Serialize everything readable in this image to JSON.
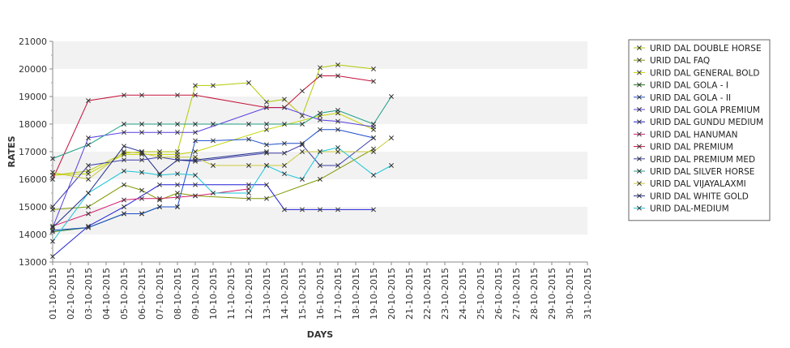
{
  "chart_data": {
    "type": "line",
    "title": "",
    "xlabel": "DAYS",
    "ylabel": "RATES",
    "ylim": [
      13000,
      21000
    ],
    "yticks": [
      13000,
      14000,
      15000,
      16000,
      17000,
      18000,
      19000,
      20000,
      21000
    ],
    "grid": "alternating horizontal bands",
    "legend_position": "right",
    "categories": [
      "01-10-2015",
      "02-10-2015",
      "03-10-2015",
      "04-10-2015",
      "05-10-2015",
      "06-10-2015",
      "07-10-2015",
      "08-10-2015",
      "09-10-2015",
      "10-10-2015",
      "11-10-2015",
      "12-10-2015",
      "13-10-2015",
      "14-10-2015",
      "15-10-2015",
      "16-10-2015",
      "17-10-2015",
      "18-10-2015",
      "19-10-2015",
      "20-10-2015",
      "21-10-2015",
      "22-10-2015",
      "23-10-2015",
      "24-10-2015",
      "25-10-2015",
      "26-10-2015",
      "27-10-2015",
      "28-10-2015",
      "29-10-2015",
      "30-10-2015",
      "31-10-2015"
    ],
    "series": [
      {
        "name": "URID DAL DOUBLE HORSE",
        "color": "#b5c900",
        "points": [
          [
            "01-10-2015",
            16150
          ],
          [
            "03-10-2015",
            16300
          ],
          [
            "05-10-2015",
            16950
          ],
          [
            "06-10-2015",
            17000
          ],
          [
            "07-10-2015",
            17000
          ],
          [
            "08-10-2015",
            17000
          ],
          [
            "09-10-2015",
            19400
          ],
          [
            "10-10-2015",
            19400
          ],
          [
            "12-10-2015",
            19500
          ],
          [
            "13-10-2015",
            18800
          ],
          [
            "14-10-2015",
            18900
          ],
          [
            "15-10-2015",
            18300
          ],
          [
            "16-10-2015",
            20050
          ],
          [
            "17-10-2015",
            20150
          ],
          [
            "19-10-2015",
            20000
          ]
        ]
      },
      {
        "name": "URID DAL FAQ",
        "color": "#7f9900",
        "points": [
          [
            "01-10-2015",
            14900
          ],
          [
            "03-10-2015",
            15000
          ],
          [
            "05-10-2015",
            15800
          ],
          [
            "06-10-2015",
            15600
          ],
          [
            "07-10-2015",
            15250
          ],
          [
            "08-10-2015",
            15500
          ],
          [
            "09-10-2015",
            15400
          ],
          [
            "12-10-2015",
            15300
          ],
          [
            "13-10-2015",
            15300
          ],
          [
            "16-10-2015",
            16000
          ],
          [
            "19-10-2015",
            17100
          ]
        ]
      },
      {
        "name": "URID DAL GENERAL BOLD",
        "color": "#c3d600",
        "points": [
          [
            "01-10-2015",
            16150
          ],
          [
            "03-10-2015",
            16200
          ],
          [
            "05-10-2015",
            16900
          ],
          [
            "06-10-2015",
            16900
          ],
          [
            "07-10-2015",
            16900
          ],
          [
            "08-10-2015",
            16900
          ],
          [
            "09-10-2015",
            17000
          ],
          [
            "13-10-2015",
            17800
          ],
          [
            "16-10-2015",
            18300
          ],
          [
            "17-10-2015",
            18400
          ],
          [
            "19-10-2015",
            17800
          ]
        ]
      },
      {
        "name": "URID DAL GOLA - I",
        "color": "#1e7a1e",
        "points": [
          [
            "01-10-2015",
            14100
          ],
          [
            "03-10-2015",
            14250
          ],
          [
            "05-10-2015",
            14750
          ],
          [
            "06-10-2015",
            14750
          ],
          [
            "07-10-2015",
            15000
          ],
          [
            "08-10-2015",
            15000
          ]
        ]
      },
      {
        "name": "URID DAL GOLA - II",
        "color": "#1a4dcc",
        "points": [
          [
            "01-10-2015",
            14150
          ],
          [
            "03-10-2015",
            14250
          ],
          [
            "05-10-2015",
            14750
          ],
          [
            "06-10-2015",
            14750
          ],
          [
            "07-10-2015",
            15000
          ],
          [
            "08-10-2015",
            15000
          ],
          [
            "09-10-2015",
            17400
          ],
          [
            "10-10-2015",
            17400
          ],
          [
            "12-10-2015",
            17450
          ],
          [
            "13-10-2015",
            17250
          ],
          [
            "14-10-2015",
            17300
          ],
          [
            "15-10-2015",
            17300
          ],
          [
            "16-10-2015",
            17800
          ],
          [
            "17-10-2015",
            17800
          ],
          [
            "19-10-2015",
            17500
          ]
        ]
      },
      {
        "name": "URID DAL GOLA PREMIUM",
        "color": "#5a3fe0",
        "points": [
          [
            "01-10-2015",
            14250
          ],
          [
            "03-10-2015",
            17500
          ],
          [
            "05-10-2015",
            17700
          ],
          [
            "06-10-2015",
            17700
          ],
          [
            "07-10-2015",
            17700
          ],
          [
            "08-10-2015",
            17700
          ],
          [
            "09-10-2015",
            17700
          ],
          [
            "13-10-2015",
            18600
          ],
          [
            "14-10-2015",
            18600
          ],
          [
            "16-10-2015",
            18150
          ],
          [
            "17-10-2015",
            18100
          ],
          [
            "19-10-2015",
            17900
          ]
        ]
      },
      {
        "name": "URID DAL GUNDU MEDIUM",
        "color": "#1f1fd6",
        "points": [
          [
            "01-10-2015",
            13200
          ],
          [
            "03-10-2015",
            14300
          ],
          [
            "05-10-2015",
            15000
          ],
          [
            "07-10-2015",
            15800
          ],
          [
            "08-10-2015",
            15800
          ],
          [
            "09-10-2015",
            15800
          ],
          [
            "12-10-2015",
            15800
          ],
          [
            "13-10-2015",
            15800
          ],
          [
            "14-10-2015",
            14900
          ],
          [
            "15-10-2015",
            14900
          ],
          [
            "16-10-2015",
            14900
          ],
          [
            "17-10-2015",
            14900
          ],
          [
            "19-10-2015",
            14900
          ]
        ]
      },
      {
        "name": "URID DAL HANUMAN",
        "color": "#d61f6e",
        "points": [
          [
            "01-10-2015",
            14300
          ],
          [
            "03-10-2015",
            14750
          ],
          [
            "05-10-2015",
            15250
          ],
          [
            "06-10-2015",
            15300
          ],
          [
            "07-10-2015",
            15300
          ],
          [
            "08-10-2015",
            15350
          ],
          [
            "09-10-2015",
            15400
          ],
          [
            "12-10-2015",
            15650
          ]
        ]
      },
      {
        "name": "URID DAL PREMIUM",
        "color": "#c4103a",
        "points": [
          [
            "01-10-2015",
            16000
          ],
          [
            "03-10-2015",
            18850
          ],
          [
            "05-10-2015",
            19050
          ],
          [
            "06-10-2015",
            19050
          ],
          [
            "08-10-2015",
            19050
          ],
          [
            "09-10-2015",
            19050
          ],
          [
            "13-10-2015",
            18600
          ],
          [
            "14-10-2015",
            18600
          ],
          [
            "15-10-2015",
            19200
          ],
          [
            "16-10-2015",
            19750
          ],
          [
            "17-10-2015",
            19750
          ],
          [
            "19-10-2015",
            19550
          ]
        ]
      },
      {
        "name": "URID DAL PREMIUM MED",
        "color": "#3d3dab",
        "points": [
          [
            "01-10-2015",
            15000
          ],
          [
            "03-10-2015",
            16500
          ],
          [
            "05-10-2015",
            16700
          ],
          [
            "06-10-2015",
            16700
          ],
          [
            "07-10-2015",
            16800
          ],
          [
            "08-10-2015",
            16700
          ],
          [
            "09-10-2015",
            16650
          ],
          [
            "13-10-2015",
            16950
          ],
          [
            "14-10-2015",
            16950
          ],
          [
            "15-10-2015",
            17250
          ],
          [
            "16-10-2015",
            16500
          ],
          [
            "17-10-2015",
            16500
          ],
          [
            "19-10-2015",
            17500
          ]
        ]
      },
      {
        "name": "URID DAL SILVER HORSE",
        "color": "#1f9e86",
        "points": [
          [
            "01-10-2015",
            16750
          ],
          [
            "03-10-2015",
            17250
          ],
          [
            "05-10-2015",
            18000
          ],
          [
            "06-10-2015",
            18000
          ],
          [
            "07-10-2015",
            18000
          ],
          [
            "08-10-2015",
            18000
          ],
          [
            "09-10-2015",
            18000
          ],
          [
            "10-10-2015",
            18000
          ],
          [
            "12-10-2015",
            18000
          ],
          [
            "13-10-2015",
            18000
          ],
          [
            "14-10-2015",
            18000
          ],
          [
            "15-10-2015",
            18000
          ],
          [
            "16-10-2015",
            18400
          ],
          [
            "17-10-2015",
            18500
          ],
          [
            "19-10-2015",
            18000
          ],
          [
            "20-10-2015",
            19000
          ]
        ]
      },
      {
        "name": "URID DAL VIJAYALAXMI",
        "color": "#c9c93a",
        "points": [
          [
            "01-10-2015",
            16250
          ],
          [
            "03-10-2015",
            16000
          ],
          [
            "05-10-2015",
            17000
          ],
          [
            "06-10-2015",
            16950
          ],
          [
            "07-10-2015",
            16800
          ],
          [
            "08-10-2015",
            16800
          ],
          [
            "09-10-2015",
            16800
          ],
          [
            "10-10-2015",
            16500
          ],
          [
            "12-10-2015",
            16500
          ],
          [
            "13-10-2015",
            16500
          ],
          [
            "14-10-2015",
            16500
          ],
          [
            "15-10-2015",
            17000
          ],
          [
            "16-10-2015",
            17000
          ],
          [
            "17-10-2015",
            17000
          ],
          [
            "19-10-2015",
            17000
          ],
          [
            "20-10-2015",
            17500
          ]
        ]
      },
      {
        "name": "URID DAL WHITE GOLD",
        "color": "#1c2a8c",
        "points": [
          [
            "01-10-2015",
            14250
          ],
          [
            "03-10-2015",
            15500
          ],
          [
            "05-10-2015",
            17200
          ],
          [
            "06-10-2015",
            17000
          ],
          [
            "07-10-2015",
            16200
          ],
          [
            "08-10-2015",
            16700
          ],
          [
            "09-10-2015",
            16700
          ],
          [
            "13-10-2015",
            17000
          ]
        ]
      },
      {
        "name": "URID DAL-MEDIUM",
        "color": "#19c4d6",
        "points": [
          [
            "01-10-2015",
            13750
          ],
          [
            "03-10-2015",
            15500
          ],
          [
            "05-10-2015",
            16300
          ],
          [
            "06-10-2015",
            16250
          ],
          [
            "07-10-2015",
            16150
          ],
          [
            "08-10-2015",
            16200
          ],
          [
            "09-10-2015",
            16150
          ],
          [
            "10-10-2015",
            15500
          ],
          [
            "12-10-2015",
            15500
          ],
          [
            "13-10-2015",
            16500
          ],
          [
            "14-10-2015",
            16200
          ],
          [
            "15-10-2015",
            16000
          ],
          [
            "16-10-2015",
            17000
          ],
          [
            "17-10-2015",
            17150
          ],
          [
            "19-10-2015",
            16150
          ],
          [
            "20-10-2015",
            16500
          ]
        ]
      }
    ]
  }
}
